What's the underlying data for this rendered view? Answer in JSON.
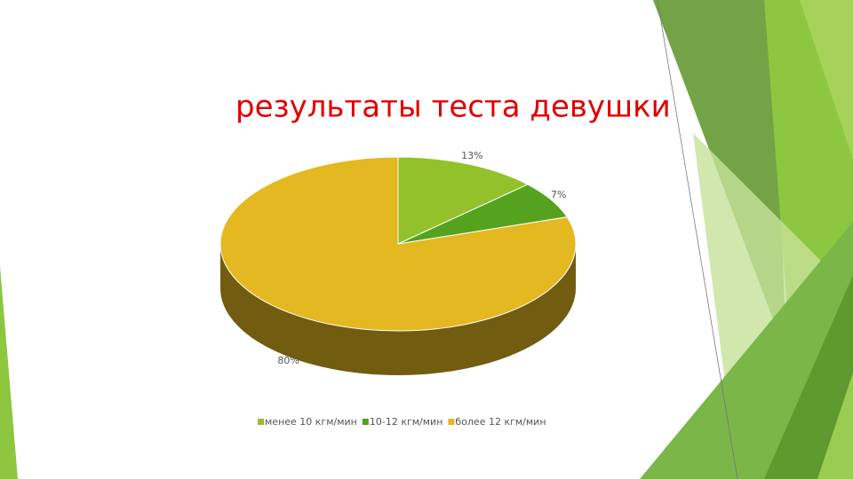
{
  "chart_data": {
    "type": "pie",
    "title": "результаты теста девушки",
    "categories": [
      "менее 10 кгм/мин",
      "10-12 кгм/мин",
      "более 12 кгм/мин"
    ],
    "values": [
      13,
      7,
      80
    ],
    "value_labels": [
      "13%",
      "7%",
      "80%"
    ],
    "colors": [
      "#92c12a",
      "#55a21e",
      "#e3b820"
    ]
  }
}
